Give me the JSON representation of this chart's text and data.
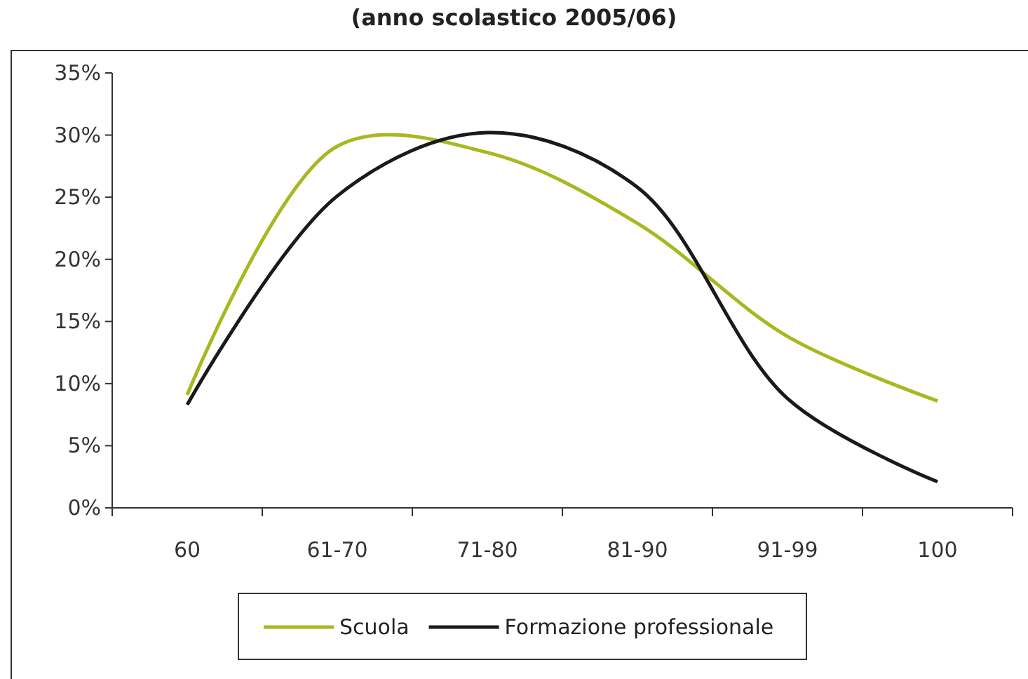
{
  "chart_data": {
    "type": "line",
    "title": "(anno scolastico 2005/06)",
    "categories": [
      "60",
      "61-70",
      "71-80",
      "81-90",
      "91-99",
      "100"
    ],
    "series": [
      {
        "name": "Scuola",
        "color": "#a8b820",
        "values": [
          9.1,
          29.1,
          28.6,
          22.9,
          13.8,
          8.6
        ]
      },
      {
        "name": "Formazione professionale",
        "color": "#1a1a1a",
        "values": [
          8.3,
          25.1,
          30.2,
          25.8,
          8.8,
          2.1
        ]
      }
    ],
    "ylim": [
      0,
      35
    ],
    "yticks": [
      {
        "value": 0,
        "label": "0%"
      },
      {
        "value": 5,
        "label": "5%"
      },
      {
        "value": 10,
        "label": "10%"
      },
      {
        "value": 15,
        "label": "15%"
      },
      {
        "value": 20,
        "label": "20%"
      },
      {
        "value": 25,
        "label": "25%"
      },
      {
        "value": 30,
        "label": "30%"
      },
      {
        "value": 35,
        "label": "35%"
      }
    ],
    "grid": false,
    "legend": "bottom",
    "marker": "none",
    "line_style": "solid"
  }
}
